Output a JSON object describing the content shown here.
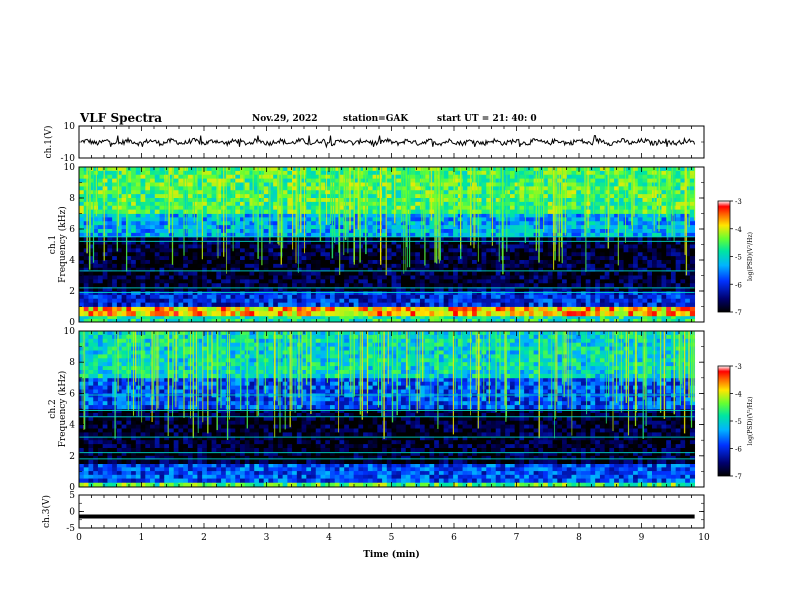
{
  "header": {
    "title": "VLF Spectra",
    "date": "Nov.29, 2022",
    "station": "station=GAK",
    "start": "start  UT =   21: 40: 0"
  },
  "chart_data": [
    {
      "type": "line",
      "name": "ch1-waveform",
      "ylabel": "ch.1(V)",
      "ylim": [
        -10,
        10
      ],
      "y_ticks": [
        "10",
        "-10"
      ],
      "xlim": [
        0,
        9.85
      ],
      "baseline": 0,
      "amplitude_range": [
        -3,
        4
      ]
    },
    {
      "type": "heatmap",
      "name": "ch1-spectrogram",
      "ylabel": "ch.1",
      "ylabel2": "Frequency  (kHz)",
      "ylim": [
        0,
        10
      ],
      "y_ticks": [
        "0",
        "2",
        "4",
        "6",
        "8",
        "10"
      ],
      "xlim": [
        0,
        9.85
      ],
      "bands_khz": [
        {
          "f0": 0.0,
          "f1": 0.4,
          "level": 0.55
        },
        {
          "f0": 0.4,
          "f1": 1.0,
          "level": 0.82
        },
        {
          "f0": 1.0,
          "f1": 2.0,
          "level": 0.25
        },
        {
          "f0": 2.0,
          "f1": 5.5,
          "level": 0.05
        },
        {
          "f0": 5.5,
          "f1": 7.0,
          "level": 0.42
        },
        {
          "f0": 7.0,
          "f1": 10.0,
          "level": 0.62
        }
      ],
      "lines_khz": [
        1.9,
        2.2,
        3.3,
        5.2,
        5.5
      ]
    },
    {
      "type": "heatmap",
      "name": "ch2-spectrogram",
      "ylabel": "ch.2",
      "ylabel2": "Frequency  (kHz)",
      "ylim": [
        0,
        10
      ],
      "y_ticks": [
        "0",
        "2",
        "4",
        "6",
        "8",
        "10"
      ],
      "xlim": [
        0,
        9.85
      ],
      "bands_khz": [
        {
          "f0": 0.0,
          "f1": 0.3,
          "level": 0.62
        },
        {
          "f0": 0.3,
          "f1": 1.5,
          "level": 0.3
        },
        {
          "f0": 1.5,
          "f1": 5.0,
          "level": 0.04
        },
        {
          "f0": 5.0,
          "f1": 7.0,
          "level": 0.3
        },
        {
          "f0": 7.0,
          "f1": 10.0,
          "level": 0.5
        }
      ],
      "lines_khz": [
        1.8,
        2.2,
        3.2,
        4.5,
        4.9,
        5.9
      ]
    },
    {
      "type": "line",
      "name": "ch3-trace",
      "ylabel": "ch.3(V)",
      "ylim": [
        -5,
        5
      ],
      "y_ticks": [
        "5",
        "0",
        "-5"
      ],
      "xlim": [
        0,
        9.85
      ],
      "value": -1.5
    }
  ],
  "x_axis": {
    "label": "Time  (min)",
    "range": [
      0,
      10
    ],
    "ticks": [
      "0",
      "1",
      "2",
      "3",
      "4",
      "5",
      "6",
      "7",
      "8",
      "9",
      "10"
    ]
  },
  "colorbars": [
    {
      "label": "log(PSD)(V²/Hz)",
      "ticks": [
        "-3",
        "-4",
        "-5",
        "-6",
        "-7"
      ],
      "range": [
        -7,
        -3
      ]
    },
    {
      "label": "log(PSD)(V²/Hz)",
      "ticks": [
        "-3",
        "-4",
        "-5",
        "-6",
        "-7"
      ],
      "range": [
        -7,
        -3
      ]
    }
  ]
}
